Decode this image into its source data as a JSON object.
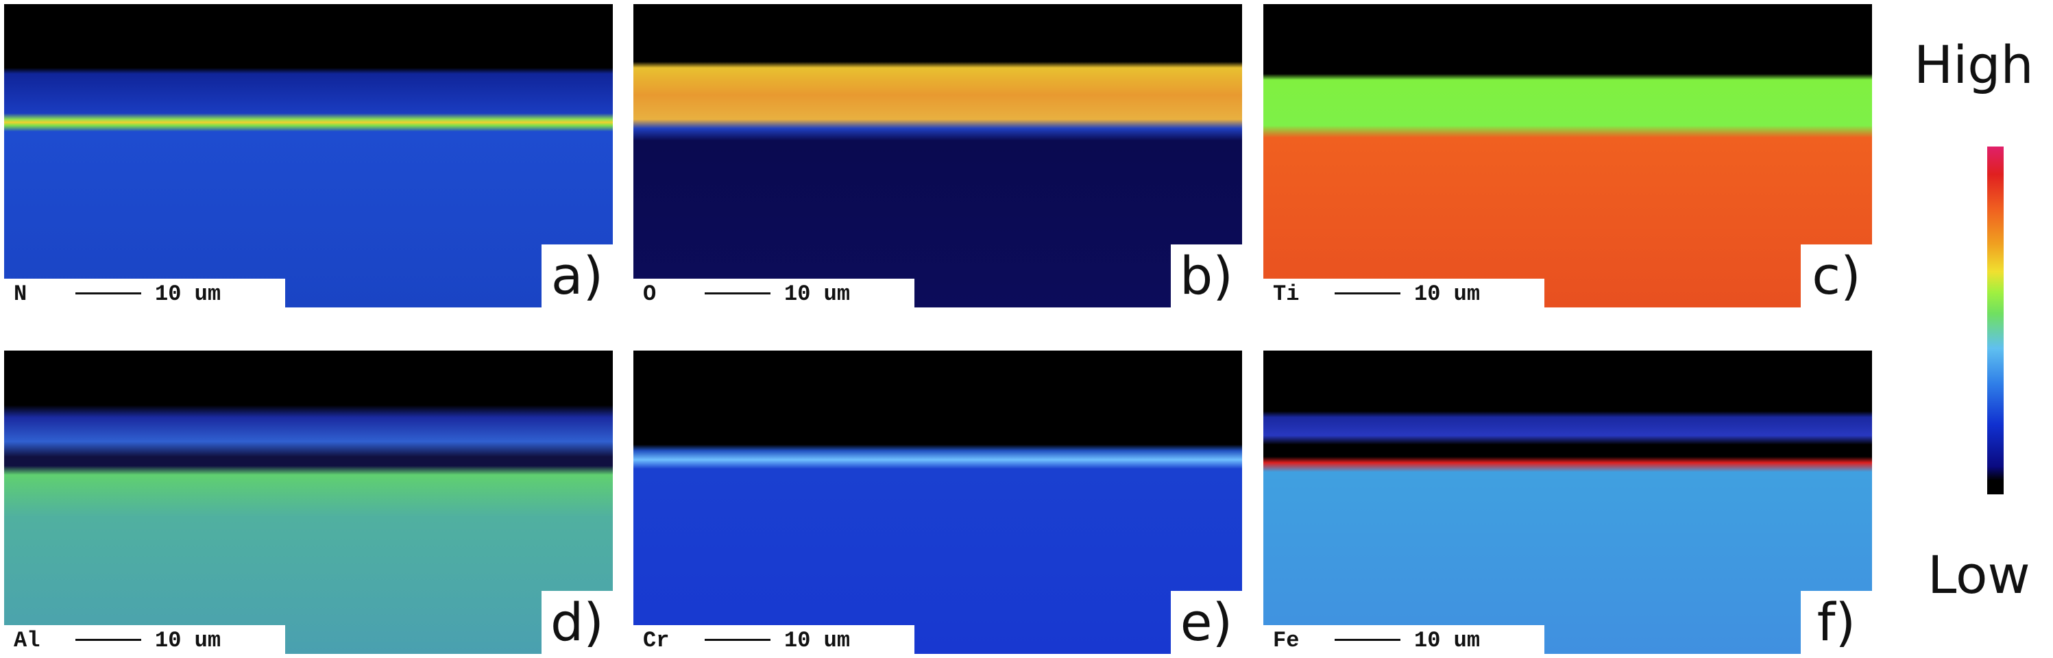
{
  "panels": [
    {
      "element": "N",
      "scale": "10 um",
      "label": "a)"
    },
    {
      "element": "O",
      "scale": "10 um",
      "label": "b)"
    },
    {
      "element": "Ti",
      "scale": "10 um",
      "label": "c)"
    },
    {
      "element": "Al",
      "scale": "10 um",
      "label": "d)"
    },
    {
      "element": "Cr",
      "scale": "10 um",
      "label": "e)"
    },
    {
      "element": "Fe",
      "scale": "10 um",
      "label": "f)"
    }
  ],
  "colorbar": {
    "high": "High",
    "low": "Low"
  }
}
